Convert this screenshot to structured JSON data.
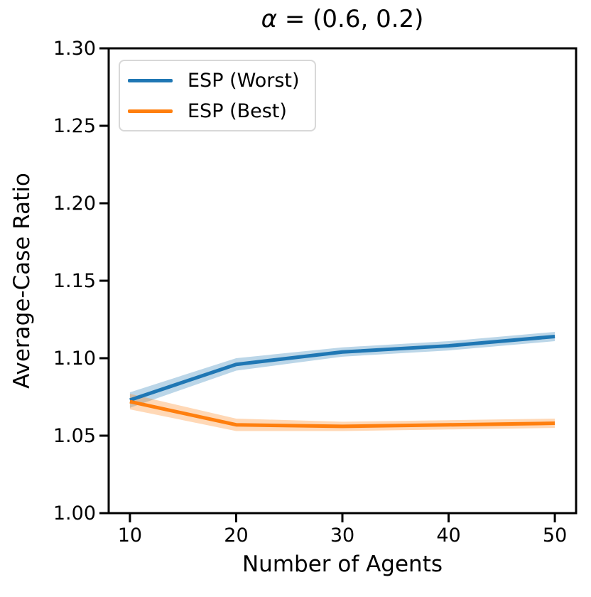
{
  "chart_data": {
    "type": "line",
    "title": "α = (0.6, 0.2)",
    "title_parts": {
      "alpha": "α",
      "rest": " = (0.6, 0.2)"
    },
    "xlabel": "Number of Agents",
    "ylabel": "Average-Case Ratio",
    "x": [
      10,
      20,
      30,
      40,
      50
    ],
    "series": [
      {
        "name": "ESP (Worst)",
        "color": "#1f77b4",
        "values": [
          1.073,
          1.096,
          1.104,
          1.108,
          1.114
        ],
        "band_lower": [
          1.068,
          1.092,
          1.101,
          1.105,
          1.111
        ],
        "band_upper": [
          1.078,
          1.1,
          1.107,
          1.111,
          1.117
        ]
      },
      {
        "name": "ESP (Best)",
        "color": "#ff7f0e",
        "values": [
          1.072,
          1.057,
          1.056,
          1.057,
          1.058
        ],
        "band_lower": [
          1.067,
          1.053,
          1.053,
          1.054,
          1.055
        ],
        "band_upper": [
          1.077,
          1.061,
          1.059,
          1.06,
          1.061
        ]
      }
    ],
    "band_alpha": 0.3,
    "xlim": [
      8,
      52
    ],
    "ylim": [
      1.0,
      1.3
    ],
    "xticks": {
      "values": [
        10,
        20,
        30,
        40,
        50
      ],
      "labels": [
        "10",
        "20",
        "30",
        "40",
        "50"
      ]
    },
    "yticks": {
      "values": [
        1.0,
        1.05,
        1.1,
        1.15,
        1.2,
        1.25,
        1.3
      ],
      "labels": [
        "1.00",
        "1.05",
        "1.10",
        "1.15",
        "1.20",
        "1.25",
        "1.30"
      ]
    },
    "legend": {
      "position": "upper left",
      "entries": [
        "ESP (Worst)",
        "ESP (Best)"
      ]
    },
    "grid": false,
    "axis_color": "#000000",
    "text_color": "#000000",
    "background": "#ffffff"
  }
}
